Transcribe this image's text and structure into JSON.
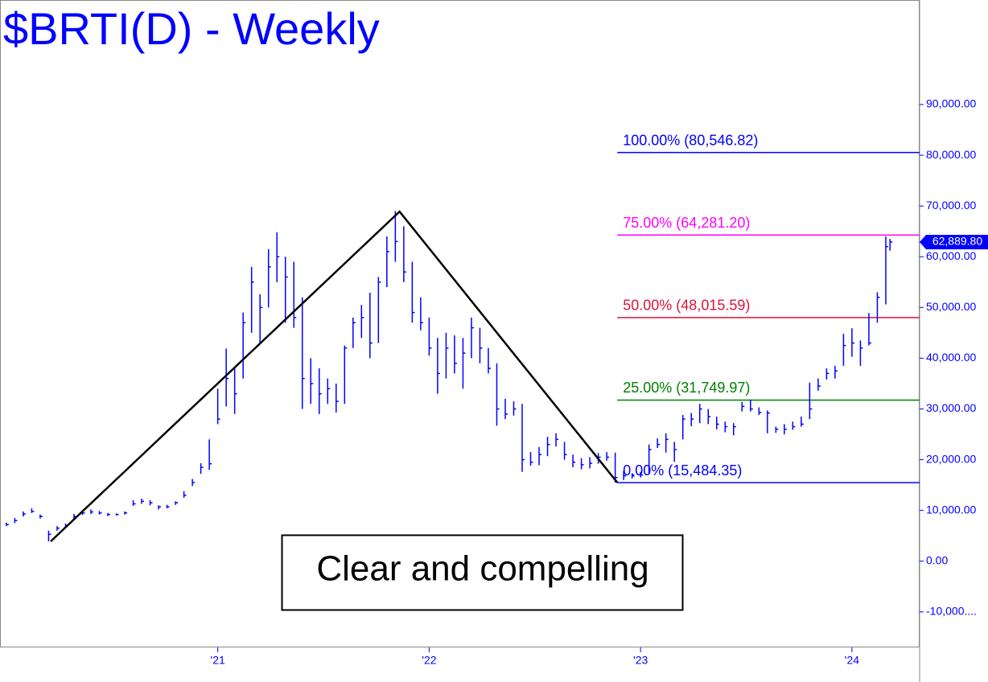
{
  "chart_data": {
    "type": "ohlc",
    "title": "$BRTI(D) - Weekly",
    "color": "#0000ff",
    "x": [
      2020.0,
      2020.04,
      2020.08,
      2020.12,
      2020.16,
      2020.2,
      2020.24,
      2020.28,
      2020.32,
      2020.36,
      2020.4,
      2020.44,
      2020.48,
      2020.52,
      2020.56,
      2020.6,
      2020.64,
      2020.68,
      2020.72,
      2020.76,
      2020.8,
      2020.84,
      2020.88,
      2020.92,
      2020.96,
      2021.0,
      2021.04,
      2021.08,
      2021.12,
      2021.16,
      2021.2,
      2021.24,
      2021.28,
      2021.32,
      2021.36,
      2021.4,
      2021.44,
      2021.48,
      2021.52,
      2021.56,
      2021.6,
      2021.64,
      2021.68,
      2021.72,
      2021.76,
      2021.8,
      2021.84,
      2021.88,
      2021.92,
      2021.96,
      2022.0,
      2022.04,
      2022.08,
      2022.12,
      2022.16,
      2022.2,
      2022.24,
      2022.28,
      2022.32,
      2022.36,
      2022.4,
      2022.44,
      2022.48,
      2022.52,
      2022.56,
      2022.6,
      2022.64,
      2022.68,
      2022.72,
      2022.76,
      2022.8,
      2022.84,
      2022.88,
      2022.92,
      2022.96,
      2023.0,
      2023.04,
      2023.08,
      2023.12,
      2023.16,
      2023.2,
      2023.24,
      2023.28,
      2023.32,
      2023.36,
      2023.4,
      2023.44,
      2023.48,
      2023.52,
      2023.56,
      2023.6,
      2023.64,
      2023.68,
      2023.72,
      2023.76,
      2023.8,
      2023.84,
      2023.88,
      2023.92,
      2023.96,
      2024.0,
      2024.04,
      2024.08,
      2024.12,
      2024.16,
      2024.18
    ],
    "high": [
      7600,
      8500,
      9800,
      10400,
      9200,
      6000,
      6900,
      7400,
      9300,
      9900,
      10200,
      9900,
      9500,
      9400,
      9800,
      12000,
      12300,
      12000,
      11000,
      11100,
      11800,
      13800,
      16200,
      19300,
      24000,
      34000,
      41900,
      38000,
      49000,
      58000,
      52600,
      61500,
      64800,
      60000,
      59000,
      52000,
      40000,
      38000,
      36000,
      35000,
      42500,
      48000,
      50500,
      52900,
      56000,
      64000,
      69000,
      66000,
      59000,
      52000,
      48000,
      44000,
      45000,
      44500,
      44000,
      48000,
      46000,
      42000,
      39000,
      32000,
      31500,
      31000,
      21500,
      22500,
      24500,
      25200,
      23500,
      21000,
      20300,
      20500,
      21300,
      21500,
      21400,
      17800,
      17300,
      17600,
      23000,
      24200,
      25200,
      23500,
      28800,
      29200,
      31000,
      30000,
      28500,
      27500,
      27200,
      31400,
      31800,
      30300,
      29700,
      26500,
      27000,
      27500,
      28500,
      35200,
      36000,
      38000,
      38500,
      44800,
      45900,
      43500,
      48900,
      53000,
      64000,
      63500
    ],
    "low": [
      6900,
      7500,
      8800,
      9500,
      8400,
      3900,
      6000,
      6600,
      8200,
      9100,
      9300,
      9200,
      8900,
      9000,
      9200,
      10900,
      11300,
      11000,
      10200,
      10400,
      11100,
      12500,
      14800,
      17200,
      18000,
      27000,
      30500,
      29000,
      36000,
      45000,
      43000,
      50000,
      55000,
      47000,
      46000,
      30000,
      31000,
      29000,
      31000,
      29300,
      31000,
      42000,
      44000,
      40000,
      43000,
      54000,
      59000,
      55000,
      47000,
      45500,
      40500,
      33000,
      36000,
      37000,
      34000,
      40000,
      39000,
      37000,
      26700,
      28000,
      28700,
      17600,
      18800,
      18900,
      20700,
      22600,
      20000,
      18500,
      18100,
      18300,
      19200,
      19800,
      15500,
      16000,
      16300,
      16500,
      17300,
      22300,
      21400,
      19600,
      24000,
      26600,
      27200,
      27000,
      26000,
      25400,
      24800,
      29500,
      29500,
      28800,
      25200,
      25300,
      25000,
      25900,
      26500,
      28000,
      33600,
      35800,
      36000,
      38500,
      40300,
      38500,
      42500,
      47000,
      50600,
      61200
    ],
    "close": [
      7200,
      8000,
      9300,
      9800,
      8800,
      5300,
      6500,
      7000,
      8800,
      9500,
      9700,
      9500,
      9200,
      9200,
      9500,
      11300,
      11800,
      11500,
      10700,
      10700,
      11500,
      13000,
      15500,
      18500,
      19200,
      28000,
      36000,
      33000,
      47000,
      55000,
      50000,
      58000,
      60000,
      56000,
      48000,
      36000,
      35000,
      33000,
      34000,
      31500,
      42000,
      47000,
      48000,
      43000,
      55000,
      61000,
      63000,
      57000,
      49000,
      47000,
      42000,
      37000,
      42000,
      39000,
      41000,
      46000,
      42000,
      38000,
      30000,
      29000,
      30000,
      20000,
      19500,
      21000,
      23000,
      24000,
      21000,
      19500,
      19000,
      19300,
      20500,
      20500,
      16500,
      16800,
      16800,
      17000,
      22000,
      23000,
      24000,
      22000,
      28000,
      28000,
      30000,
      28500,
      27000,
      26500,
      26500,
      30500,
      30000,
      29300,
      29200,
      26000,
      26000,
      26500,
      27000,
      30000,
      34500,
      37000,
      37500,
      42500,
      43000,
      42000,
      43000,
      52000,
      62000,
      62889.8
    ],
    "last_price": {
      "value": 62889.8,
      "label": "62,889.80"
    },
    "xlim": [
      2019.97,
      2024.32
    ],
    "xticks": [
      {
        "value": 2021,
        "label": "'21"
      },
      {
        "value": 2022,
        "label": "'22"
      },
      {
        "value": 2023,
        "label": "'23"
      },
      {
        "value": 2024,
        "label": "'24"
      }
    ],
    "ylim": [
      -17000,
      110600
    ],
    "yticks": [
      {
        "value": -10000,
        "label": "-10,000...."
      },
      {
        "value": 0,
        "label": "0.00"
      },
      {
        "value": 10000,
        "label": "10,000.00"
      },
      {
        "value": 20000,
        "label": "20,000.00"
      },
      {
        "value": 30000,
        "label": "30,000.00"
      },
      {
        "value": 40000,
        "label": "40,000.00"
      },
      {
        "value": 50000,
        "label": "50,000.00"
      },
      {
        "value": 60000,
        "label": "60,000.00"
      },
      {
        "value": 70000,
        "label": "70,000.00"
      },
      {
        "value": 80000,
        "label": "80,000.00"
      },
      {
        "value": 90000,
        "label": "90,000.00"
      }
    ],
    "fib_levels": [
      {
        "label": "100.00% (80,546.82)",
        "value": 80546.82,
        "color": "#0000ff"
      },
      {
        "label": "75.00% (64,281.20)",
        "value": 64281.2,
        "color": "#ff00ff"
      },
      {
        "label": "50.00% (48,015.59)",
        "value": 48015.59,
        "color": "#dc143c"
      },
      {
        "label": "25.00% (31,749.97)",
        "value": 31749.97,
        "color": "#008000"
      },
      {
        "label": "0.00% (15,484.35)",
        "value": 15484.35,
        "color": "#0000ff"
      }
    ],
    "pattern": {
      "x": [
        2020.21,
        2021.86,
        2022.89
      ],
      "values": [
        3900,
        68900,
        15500
      ],
      "color": "#000000"
    },
    "annotation": "Clear and compelling"
  }
}
